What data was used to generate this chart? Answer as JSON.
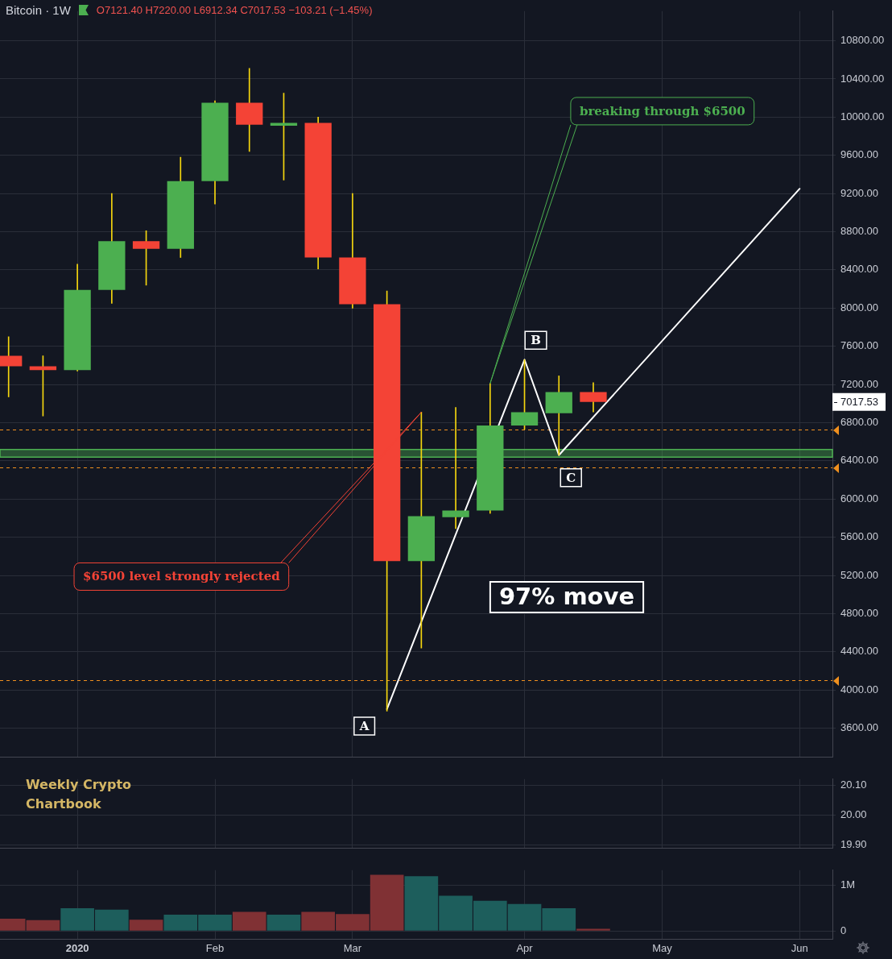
{
  "chart_data": [
    {
      "type": "candlestick",
      "title": "Bitcoin · 1W",
      "subtitle": "O7121.40 H7220.00 L6912.34 C7017.53 −103.21 (−1.45%)",
      "x": [
        "2019-12-23",
        "2019-12-30",
        "2020-01-06",
        "2020-01-13",
        "2020-01-20",
        "2020-01-27",
        "2020-02-03",
        "2020-02-10",
        "2020-02-17",
        "2020-02-24",
        "2020-03-02",
        "2020-03-09",
        "2020-03-16",
        "2020-03-23",
        "2020-03-30",
        "2020-04-06",
        "2020-04-13",
        "2020-04-20"
      ],
      "ohlc": [
        [
          7500,
          7700,
          7070,
          7390
        ],
        [
          7390,
          7500,
          6870,
          7350
        ],
        [
          7350,
          8460,
          7340,
          8190
        ],
        [
          8190,
          9200,
          8050,
          8700
        ],
        [
          8700,
          8810,
          8240,
          8620
        ],
        [
          8620,
          9580,
          8530,
          9330
        ],
        [
          9330,
          10170,
          9090,
          10150
        ],
        [
          10150,
          10510,
          9640,
          9920
        ],
        [
          9910,
          10250,
          9340,
          9940
        ],
        [
          9940,
          10000,
          8410,
          8530
        ],
        [
          8530,
          9200,
          8000,
          8040
        ],
        [
          8040,
          8180,
          3780,
          5350
        ],
        [
          5350,
          6910,
          4440,
          5820
        ],
        [
          5810,
          6960,
          5690,
          5880
        ],
        [
          5880,
          7210,
          5850,
          6770
        ],
        [
          6770,
          7460,
          6730,
          6910
        ],
        [
          6900,
          7290,
          6460,
          7120
        ],
        [
          7121.4,
          7220,
          6912.34,
          7017.53
        ]
      ],
      "colors": [
        "#f44336",
        "#f44336",
        "#4caf50",
        "#4caf50",
        "#f44336",
        "#4caf50",
        "#4caf50",
        "#f44336",
        "#4caf50",
        "#f44336",
        "#f44336",
        "#f44336",
        "#4caf50",
        "#4caf50",
        "#4caf50",
        "#4caf50",
        "#4caf50",
        "#f44336"
      ],
      "series": [
        {
          "type": "line",
          "color": "#ffffff",
          "x": [
            "2020-03-09",
            "2020-04-06",
            "2020-04-13",
            "2020-06-01"
          ],
          "values": [
            3800,
            7460,
            6460,
            9250
          ]
        }
      ],
      "xlim": [
        "2019-12-21T06:00",
        "2020-06-07T16:00"
      ],
      "xticks": [
        {
          "value": "2020-01-06",
          "label": null
        },
        {
          "value": "2020-02-03",
          "label": null
        },
        {
          "value": "2020-03-02",
          "label": null
        },
        {
          "value": "2020-04-06",
          "label": null
        },
        {
          "value": "2020-05-04",
          "label": null
        },
        {
          "value": "2020-06-01",
          "label": null
        }
      ],
      "ylim": [
        3300,
        11110
      ],
      "yticks": [
        {
          "value": 3600,
          "label": "3600.00"
        },
        {
          "value": 4000,
          "label": "4000.00"
        },
        {
          "value": 4400,
          "label": "4400.00"
        },
        {
          "value": 4800,
          "label": "4800.00"
        },
        {
          "value": 5200,
          "label": "5200.00"
        },
        {
          "value": 5600,
          "label": "5600.00"
        },
        {
          "value": 6000,
          "label": "6000.00"
        },
        {
          "value": 6400,
          "label": "6400.00"
        },
        {
          "value": 6800,
          "label": "6800.00"
        },
        {
          "value": 7200,
          "label": "7200.00"
        },
        {
          "value": 7600,
          "label": "7600.00"
        },
        {
          "value": 8000,
          "label": "8000.00"
        },
        {
          "value": 8400,
          "label": "8400.00"
        },
        {
          "value": 8800,
          "label": "8800.00"
        },
        {
          "value": 9200,
          "label": "9200.00"
        },
        {
          "value": 9600,
          "label": "9600.00"
        },
        {
          "value": 10000,
          "label": "10000.00"
        },
        {
          "value": 10400,
          "label": "10400.00"
        },
        {
          "value": 10800,
          "label": "10800.00"
        }
      ],
      "tick_labels": "y",
      "grid": true,
      "ref_lines": [
        {
          "axis": "y",
          "value": 6730,
          "color": "#f0901e",
          "line_style": "dashed"
        },
        {
          "axis": "y",
          "value": 6330,
          "color": "#f0901e",
          "line_style": "dashed"
        },
        {
          "axis": "y",
          "value": 4100,
          "color": "#f0901e",
          "line_style": "dashed"
        }
      ],
      "bands": [
        {
          "axis": "y",
          "from": 6440,
          "to": 6520,
          "color": "#4caf50"
        }
      ],
      "annotations": [
        {
          "text": "A",
          "x": "2020-03-09",
          "y": 3800
        },
        {
          "text": "B",
          "x": "2020-04-06",
          "y": 7460
        },
        {
          "text": "C",
          "x": "2020-04-13",
          "y": 6460
        },
        "97% move",
        {
          "text": "$6500 level strongly rejected",
          "x": "2020-03-16",
          "y": 6910
        },
        {
          "text": "breaking through $6500",
          "x": "2020-03-30",
          "y": 7210
        },
        "7017.53"
      ]
    },
    {
      "type": "line",
      "xlim": [
        "2019-12-21T06:00",
        "2020-06-07T16:00"
      ],
      "xticks": [
        {
          "value": "2020-01-06",
          "label": null
        },
        {
          "value": "2020-02-03",
          "label": null
        },
        {
          "value": "2020-03-02",
          "label": null
        },
        {
          "value": "2020-04-06",
          "label": null
        },
        {
          "value": "2020-05-04",
          "label": null
        },
        {
          "value": "2020-06-01",
          "label": null
        }
      ],
      "ylim": [
        19.89,
        20.12
      ],
      "yticks": [
        {
          "value": 19.9,
          "label": "19.90"
        },
        {
          "value": 20,
          "label": "20.00"
        },
        {
          "value": 20.1,
          "label": "20.10"
        }
      ],
      "tick_labels": "y",
      "grid": true,
      "annotations": [
        "Weekly Crypto Chartbook"
      ]
    },
    {
      "type": "bar",
      "x": [
        "2019-12-23",
        "2019-12-30",
        "2020-01-06",
        "2020-01-13",
        "2020-01-20",
        "2020-01-27",
        "2020-02-03",
        "2020-02-10",
        "2020-02-17",
        "2020-02-24",
        "2020-03-02",
        "2020-03-09",
        "2020-03-16",
        "2020-03-23",
        "2020-03-30",
        "2020-04-06",
        "2020-04-13",
        "2020-04-20"
      ],
      "values": [
        270000,
        240000,
        500000,
        470000,
        250000,
        360000,
        360000,
        420000,
        360000,
        420000,
        370000,
        1230000,
        1200000,
        770000,
        660000,
        590000,
        500000,
        50000
      ],
      "colors": [
        "#803134",
        "#803134",
        "#1d5e5c",
        "#1d5e5c",
        "#803134",
        "#1d5e5c",
        "#1d5e5c",
        "#803134",
        "#1d5e5c",
        "#803134",
        "#803134",
        "#803134",
        "#1d5e5c",
        "#1d5e5c",
        "#1d5e5c",
        "#1d5e5c",
        "#1d5e5c",
        "#803134"
      ],
      "xlim": [
        "2019-12-21T06:00",
        "2020-06-07T16:00"
      ],
      "xticks": [
        {
          "value": "2020-01-06",
          "label": "2020"
        },
        {
          "value": "2020-02-03",
          "label": "Feb"
        },
        {
          "value": "2020-03-02",
          "label": "Mar"
        },
        {
          "value": "2020-04-06",
          "label": "Apr"
        },
        {
          "value": "2020-05-04",
          "label": "May"
        },
        {
          "value": "2020-06-01",
          "label": "Jun"
        }
      ],
      "ylim": [
        -170000,
        1330000
      ],
      "yticks": [
        0,
        {
          "value": 1000000,
          "label": "1M"
        }
      ],
      "grid": true
    }
  ]
}
